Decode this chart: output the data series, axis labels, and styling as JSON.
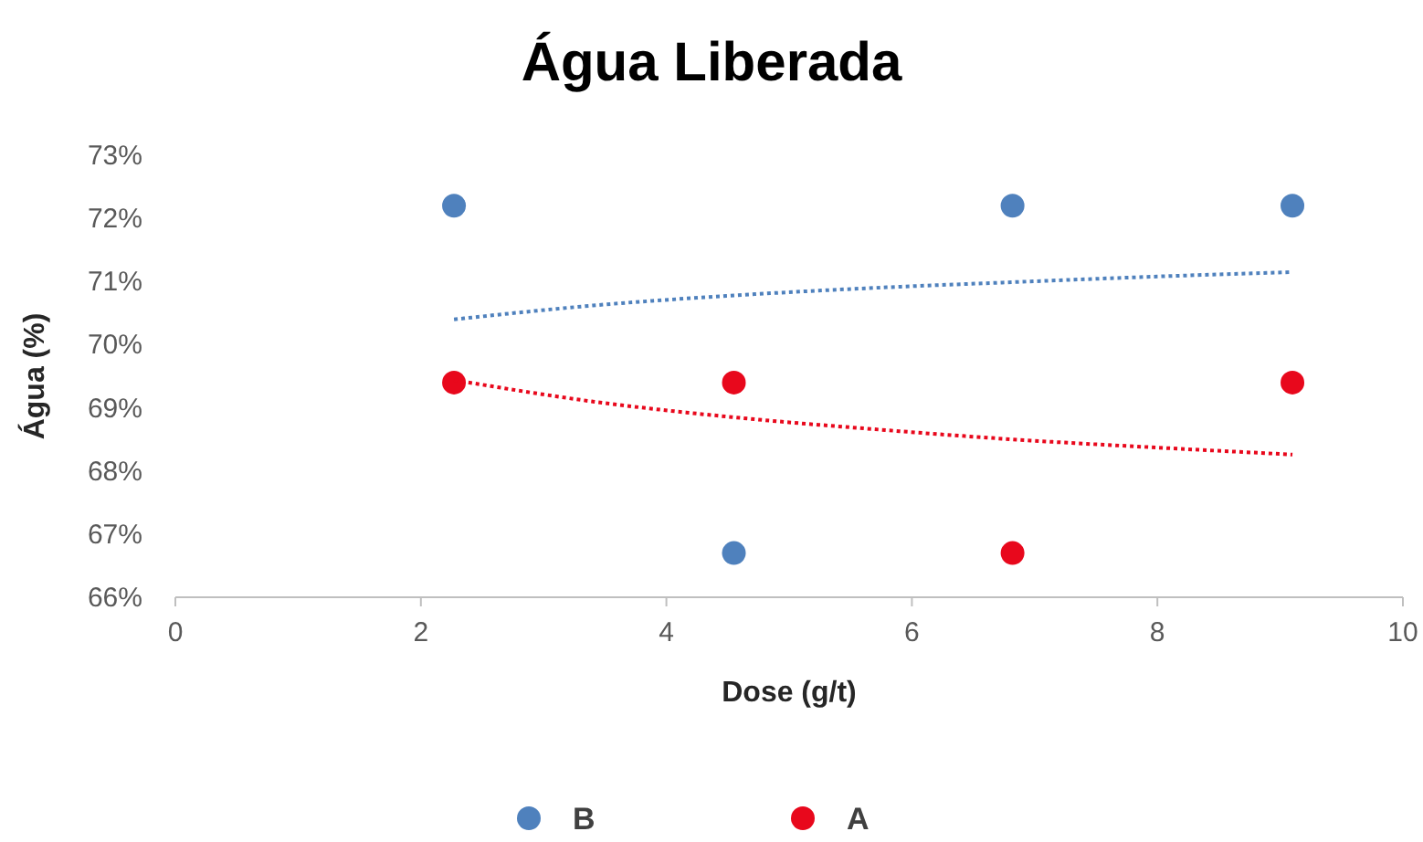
{
  "chart_data": {
    "type": "scatter",
    "title": "Água Liberada",
    "xlabel": "Dose (g/t)",
    "ylabel": "Água (%)",
    "xlim": [
      0,
      10
    ],
    "xticks": [
      0,
      2,
      4,
      6,
      8,
      10
    ],
    "ylim": [
      66,
      73
    ],
    "yticks": [
      {
        "value": 66,
        "label": "66%"
      },
      {
        "value": 67,
        "label": "67%"
      },
      {
        "value": 68,
        "label": "68%"
      },
      {
        "value": 69,
        "label": "69%"
      },
      {
        "value": 70,
        "label": "70%"
      },
      {
        "value": 71,
        "label": "71%"
      },
      {
        "value": 72,
        "label": "72%"
      },
      {
        "value": 73,
        "label": "73%"
      }
    ],
    "grid": false,
    "legend": "bottom",
    "marker": "circle",
    "series": [
      {
        "name": "B",
        "color": "#4f81bd",
        "x": [
          2.27,
          4.55,
          6.82,
          9.1
        ],
        "values": [
          72.2,
          66.7,
          72.2,
          72.2
        ]
      },
      {
        "name": "A",
        "color": "#e8081c",
        "x": [
          2.27,
          4.55,
          6.82,
          9.1
        ],
        "values": [
          69.4,
          69.4,
          66.7,
          69.4
        ]
      },
      {
        "type": "line",
        "color": "#4f81bd",
        "line_style": "dotted",
        "marker": "none",
        "x": [
          2.27,
          3.4,
          4.55,
          5.7,
          6.82,
          8,
          9.1
        ],
        "values": [
          70.4,
          70.62,
          70.78,
          70.9,
          70.99,
          71.08,
          71.15
        ]
      },
      {
        "type": "line",
        "color": "#e8081c",
        "line_style": "dotted",
        "marker": "none",
        "x": [
          2.27,
          3.4,
          4.55,
          5.7,
          6.82,
          8,
          9.1
        ],
        "values": [
          69.44,
          69.1,
          68.85,
          68.66,
          68.5,
          68.37,
          68.26
        ]
      }
    ]
  }
}
